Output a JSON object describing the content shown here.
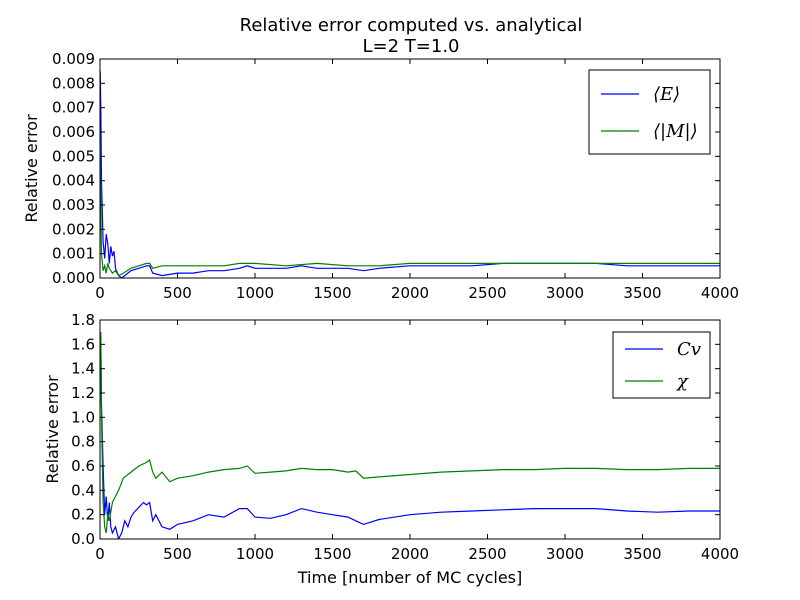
{
  "figure": {
    "title_line1": "Relative error computed vs. analytical",
    "title_line2": "L=2 T=1.0"
  },
  "chart_data": [
    {
      "type": "line",
      "title": "Relative error computed vs. analytical\nL=2 T=1.0",
      "xlabel": "",
      "ylabel": "Relative error",
      "xlim": [
        0,
        4000
      ],
      "ylim": [
        0,
        0.009
      ],
      "xticks": [
        "0",
        "500",
        "1000",
        "1500",
        "2000",
        "2500",
        "3000",
        "3500",
        "4000"
      ],
      "yticks": [
        "0.000",
        "0.001",
        "0.002",
        "0.003",
        "0.004",
        "0.005",
        "0.006",
        "0.007",
        "0.008",
        "0.009"
      ],
      "grid": false,
      "legend_position": "top-right",
      "series": [
        {
          "name": "⟨E⟩",
          "color": "#0000ff",
          "x": [
            1,
            5,
            10,
            20,
            30,
            40,
            50,
            60,
            70,
            80,
            90,
            100,
            120,
            140,
            160,
            180,
            200,
            250,
            300,
            320,
            340,
            400,
            500,
            600,
            700,
            800,
            900,
            950,
            1000,
            1100,
            1200,
            1300,
            1400,
            1500,
            1600,
            1700,
            1800,
            2000,
            2200,
            2400,
            2600,
            2800,
            3000,
            3200,
            3400,
            3600,
            3800,
            4000
          ],
          "y": [
            0.0085,
            0.007,
            0.004,
            0.0015,
            0.0008,
            0.0018,
            0.0014,
            0.0006,
            0.0013,
            0.0009,
            0.0011,
            0.0004,
            0.0001,
            0.0,
            0.0001,
            0.0002,
            0.0003,
            0.0004,
            0.0005,
            0.0005,
            0.0002,
            0.0001,
            0.0002,
            0.0002,
            0.0003,
            0.0003,
            0.0004,
            0.0005,
            0.0004,
            0.0004,
            0.0004,
            0.0005,
            0.0004,
            0.0004,
            0.0004,
            0.0003,
            0.0004,
            0.0005,
            0.0005,
            0.0005,
            0.0006,
            0.0006,
            0.0006,
            0.0006,
            0.0005,
            0.0005,
            0.0005,
            0.0005
          ]
        },
        {
          "name": "⟨|M|⟩",
          "color": "#008000",
          "x": [
            1,
            5,
            10,
            20,
            30,
            40,
            50,
            60,
            80,
            100,
            120,
            150,
            200,
            250,
            300,
            320,
            340,
            400,
            500,
            600,
            700,
            800,
            900,
            950,
            1000,
            1200,
            1400,
            1600,
            1700,
            1800,
            2000,
            2200,
            2400,
            2600,
            2800,
            3000,
            3200,
            3400,
            3600,
            3800,
            4000
          ],
          "y": [
            0.006,
            0.003,
            0.001,
            0.0003,
            0.0005,
            0.0002,
            0.0006,
            0.0004,
            0.0002,
            0.0003,
            0.0001,
            0.0002,
            0.0004,
            0.0005,
            0.0006,
            0.0006,
            0.0004,
            0.0005,
            0.0005,
            0.0005,
            0.0005,
            0.0005,
            0.0006,
            0.0006,
            0.0006,
            0.0005,
            0.0006,
            0.0005,
            0.0005,
            0.0005,
            0.0006,
            0.0006,
            0.0006,
            0.0006,
            0.0006,
            0.0006,
            0.0006,
            0.0006,
            0.0006,
            0.0006,
            0.0006
          ]
        }
      ]
    },
    {
      "type": "line",
      "title": "",
      "xlabel": "Time [number of MC cycles]",
      "ylabel": "Relative error",
      "xlim": [
        0,
        4000
      ],
      "ylim": [
        0,
        1.8
      ],
      "xticks": [
        "0",
        "500",
        "1000",
        "1500",
        "2000",
        "2500",
        "3000",
        "3500",
        "4000"
      ],
      "yticks": [
        "0.0",
        "0.2",
        "0.4",
        "0.6",
        "0.8",
        "1.0",
        "1.2",
        "1.4",
        "1.6",
        "1.8"
      ],
      "grid": false,
      "legend_position": "top-right",
      "series": [
        {
          "name": "Cv",
          "color": "#0000ff",
          "x": [
            1,
            5,
            10,
            20,
            30,
            40,
            50,
            60,
            70,
            80,
            100,
            120,
            140,
            160,
            180,
            200,
            220,
            250,
            280,
            300,
            320,
            340,
            360,
            400,
            450,
            500,
            600,
            700,
            800,
            900,
            950,
            1000,
            1100,
            1200,
            1300,
            1400,
            1500,
            1600,
            1650,
            1700,
            1800,
            2000,
            2200,
            2400,
            2600,
            2800,
            3000,
            3200,
            3400,
            3600,
            3800,
            4000
          ],
          "y": [
            1.4,
            1.6,
            1.1,
            0.6,
            0.2,
            0.35,
            0.15,
            0.3,
            0.1,
            0.05,
            0.1,
            0.0,
            0.05,
            0.15,
            0.1,
            0.18,
            0.22,
            0.26,
            0.3,
            0.28,
            0.3,
            0.15,
            0.2,
            0.1,
            0.08,
            0.12,
            0.15,
            0.2,
            0.18,
            0.25,
            0.25,
            0.18,
            0.17,
            0.2,
            0.25,
            0.22,
            0.2,
            0.18,
            0.15,
            0.12,
            0.16,
            0.2,
            0.22,
            0.23,
            0.24,
            0.25,
            0.25,
            0.25,
            0.23,
            0.22,
            0.23,
            0.23
          ]
        },
        {
          "name": "χ",
          "color": "#008000",
          "x": [
            1,
            5,
            10,
            20,
            30,
            40,
            50,
            60,
            80,
            100,
            120,
            150,
            200,
            250,
            300,
            320,
            340,
            360,
            400,
            450,
            500,
            600,
            700,
            800,
            900,
            950,
            1000,
            1100,
            1200,
            1300,
            1400,
            1500,
            1600,
            1650,
            1700,
            1800,
            2000,
            2200,
            2400,
            2600,
            2800,
            3000,
            3200,
            3400,
            3600,
            3800,
            4000
          ],
          "y": [
            1.6,
            1.7,
            1.0,
            0.3,
            0.1,
            0.05,
            0.2,
            0.15,
            0.3,
            0.35,
            0.4,
            0.5,
            0.55,
            0.6,
            0.63,
            0.65,
            0.55,
            0.5,
            0.55,
            0.47,
            0.5,
            0.52,
            0.55,
            0.57,
            0.58,
            0.6,
            0.54,
            0.55,
            0.56,
            0.58,
            0.57,
            0.57,
            0.55,
            0.56,
            0.5,
            0.51,
            0.53,
            0.55,
            0.56,
            0.57,
            0.57,
            0.58,
            0.58,
            0.57,
            0.57,
            0.58,
            0.58
          ]
        }
      ]
    }
  ]
}
